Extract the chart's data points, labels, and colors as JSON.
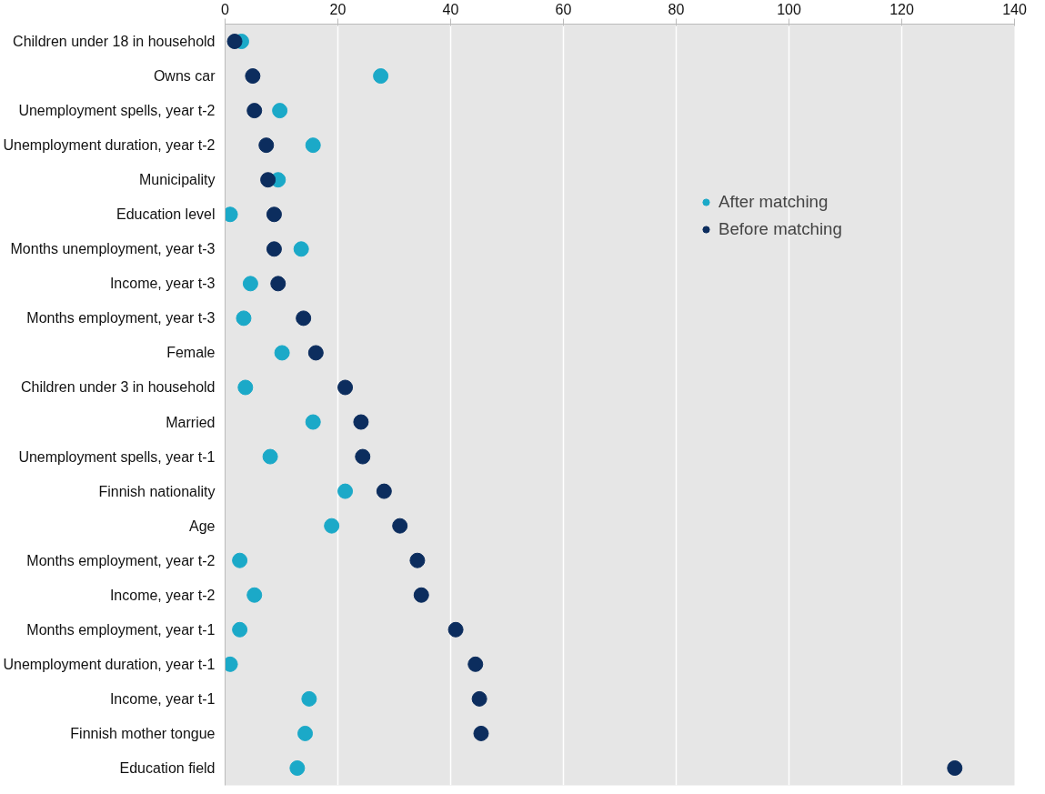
{
  "chart_data": {
    "type": "scatter",
    "categories": [
      "Children under 18 in household",
      "Owns car",
      "Unemployment spells, year t-2",
      "Unemployment duration, year t-2",
      "Municipality",
      "Education level",
      "Months unemployment, year t-3",
      "Income, year t-3",
      "Months employment, year t-3",
      "Female",
      "Children under 3 in household",
      "Married",
      "Unemployment spells, year t-1",
      "Finnish nationality",
      "Age",
      "Months employment, year t-2",
      "Income, year t-2",
      "Months employment, year t-1",
      "Unemployment duration, year t-1",
      "Income, year t-1",
      "Finnish mother tongue",
      "Education field"
    ],
    "orientation": "horizontal",
    "series": [
      {
        "name": "After matching",
        "color": "#1ba9c8",
        "values": [
          2.9,
          27.6,
          9.7,
          15.6,
          9.4,
          0.9,
          13.5,
          4.5,
          3.3,
          10.1,
          3.6,
          15.6,
          8.0,
          21.3,
          18.9,
          2.6,
          5.2,
          2.6,
          0.9,
          14.9,
          14.2,
          12.8
        ]
      },
      {
        "name": "Before matching",
        "color": "#0c2d5e",
        "values": [
          1.7,
          4.9,
          5.2,
          7.3,
          7.6,
          8.7,
          8.7,
          9.4,
          13.9,
          16.1,
          21.3,
          24.1,
          24.4,
          28.2,
          31.0,
          34.1,
          34.8,
          40.9,
          44.4,
          45.1,
          45.4,
          129.4
        ]
      }
    ],
    "xlim": [
      0,
      140
    ],
    "xticks": [
      0,
      20,
      40,
      60,
      80,
      100,
      120,
      140
    ],
    "grid": "x",
    "legend": "top right",
    "marker": "circle"
  }
}
